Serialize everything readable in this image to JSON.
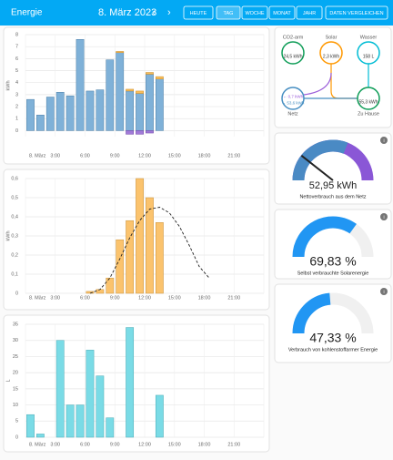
{
  "header": {
    "title": "Energie",
    "date": "8. März 2023",
    "buttons": [
      "HEUTE",
      "TAG",
      "WOCHE",
      "MONAT",
      "JAHR"
    ],
    "compare": "DATEN VERGLEICHEN"
  },
  "flow": {
    "nodes": [
      {
        "label": "CO2-arm",
        "lines": [
          "24,5 kWh"
        ]
      },
      {
        "label": "Solar",
        "lines": [
          "2,3 kWh"
        ]
      },
      {
        "label": "Wasser",
        "lines": [
          "158 L"
        ]
      },
      {
        "label": "Netz",
        "lines": [
          "← 0,7 kWh",
          "→ 53,6 kWh"
        ]
      },
      {
        "label": "Zu Hause",
        "lines": [
          "55,3 kWh"
        ]
      }
    ]
  },
  "chart_data": [
    {
      "type": "bar",
      "ylabel": "kWh",
      "categories": [
        "8. März",
        null,
        null,
        "3:00",
        null,
        null,
        "6:00",
        null,
        null,
        "9:00",
        null,
        null,
        "12:00",
        null,
        null,
        "15:00",
        null,
        null,
        "18:00",
        null,
        null,
        "21:00",
        null,
        null
      ],
      "series": [
        {
          "color": "#7fb1d8",
          "values": [
            2.6,
            1.3,
            2.8,
            3.2,
            2.9,
            7.6,
            3.3,
            3.4,
            5.9,
            6.5,
            3.3,
            3.1,
            4.7,
            4.3,
            null,
            null,
            null,
            null,
            null,
            null,
            null,
            null,
            null,
            null
          ]
        },
        {
          "color": "#fbbf5c",
          "values": [
            null,
            null,
            null,
            null,
            null,
            null,
            null,
            null,
            null,
            0.1,
            0.15,
            0.2,
            0.15,
            0.2,
            null,
            null,
            null,
            null,
            null,
            null,
            null,
            null,
            null,
            null
          ]
        },
        {
          "color": "#a27ad8",
          "values": [
            null,
            null,
            null,
            null,
            null,
            null,
            null,
            null,
            null,
            null,
            -0.3,
            -0.3,
            -0.2,
            null,
            null,
            null,
            null,
            null,
            null,
            null,
            null,
            null,
            null,
            null
          ]
        }
      ],
      "ylim": [
        -0.5,
        8
      ],
      "yticks": [
        0,
        1,
        2,
        3,
        4,
        5,
        6,
        7,
        8
      ],
      "grid": true
    },
    {
      "type": "bar",
      "ylabel": "kWh",
      "categories": [
        "8. März",
        null,
        null,
        "3:00",
        null,
        null,
        "6:00",
        null,
        null,
        "9:00",
        null,
        null,
        "12:00",
        null,
        null,
        "15:00",
        null,
        null,
        "18:00",
        null,
        null,
        "21:00",
        null,
        null
      ],
      "series": [
        {
          "color": "#fbc36d",
          "values": [
            null,
            null,
            null,
            null,
            null,
            null,
            0.01,
            0.02,
            0.08,
            0.28,
            0.38,
            0.6,
            0.5,
            0.37,
            null,
            null,
            null,
            null,
            null,
            null,
            null,
            null,
            null,
            null
          ]
        },
        {
          "type": "line",
          "dashed": true,
          "color": "#222222",
          "values": [
            null,
            null,
            null,
            null,
            null,
            null,
            0,
            0.02,
            0.08,
            0.18,
            0.29,
            0.38,
            0.44,
            0.45,
            0.42,
            0.35,
            0.25,
            0.14,
            0.08,
            null,
            null,
            null,
            null,
            null
          ]
        }
      ],
      "ylim": [
        0,
        0.6
      ],
      "yticks": [
        0,
        {
          "value": 0.1,
          "label": "0,1"
        },
        {
          "value": 0.2,
          "label": "0,2"
        },
        {
          "value": 0.3,
          "label": "0,3"
        },
        {
          "value": 0.4,
          "label": "0,4"
        },
        {
          "value": 0.5,
          "label": "0,5"
        },
        {
          "value": 0.6,
          "label": "0,6"
        }
      ],
      "grid": true
    },
    {
      "type": "bar",
      "ylabel": "L",
      "categories": [
        "8. März",
        null,
        null,
        "3:00",
        null,
        null,
        "6:00",
        null,
        null,
        "9:00",
        null,
        null,
        "12:00",
        null,
        null,
        "15:00",
        null,
        null,
        "18:00",
        null,
        null,
        "21:00",
        null,
        null
      ],
      "series": [
        {
          "color": "#7adbe6",
          "values": [
            7,
            1,
            null,
            30,
            10,
            10,
            27,
            19,
            6,
            null,
            34,
            null,
            null,
            13,
            null,
            null,
            null,
            null,
            null,
            null,
            null,
            null,
            null,
            null
          ]
        }
      ],
      "ylim": [
        0,
        35
      ],
      "yticks": [
        0,
        5,
        10,
        15,
        20,
        25,
        30,
        35
      ],
      "grid": true
    },
    {
      "type": "gauge",
      "title": "Nettoverbrauch aus dem Netz",
      "values": [
        52.95
      ],
      "value_labels": [
        "52,95 kWh"
      ],
      "ylim": [
        0,
        250
      ],
      "color": "#4a8ac4",
      "rest_color": "#8a57d6",
      "needle": true
    },
    {
      "type": "gauge",
      "title": "Selbst verbrauchte Solarenergie",
      "values": [
        69.83
      ],
      "value_labels": [
        "69,83 %"
      ],
      "ylim": [
        0,
        100
      ],
      "color": "#2196f3",
      "rest_color": "#f0f0f0",
      "needle": false
    },
    {
      "type": "gauge",
      "title": "Verbrauch von kohlenstoffarmer Energie",
      "values": [
        47.33
      ],
      "value_labels": [
        "47,33 %"
      ],
      "ylim": [
        0,
        100
      ],
      "color": "#2196f3",
      "rest_color": "#f0f0f0",
      "needle": false
    }
  ]
}
